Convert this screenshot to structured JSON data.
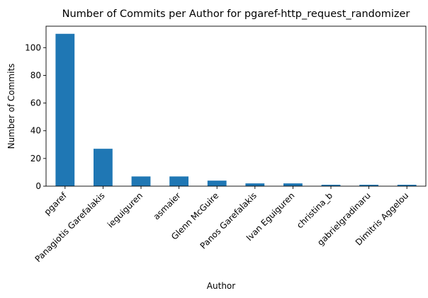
{
  "chart_data": {
    "type": "bar",
    "title": "Number of Commits per Author for pgaref-http_request_randomizer",
    "xlabel": "Author",
    "ylabel": "Number of Commits",
    "categories": [
      "pgaref",
      "Panagiotis Garefalakis",
      "ieguiguren",
      "asmaier",
      "Glenn McGuire",
      "Panos Garefalakis",
      "Ivan Eguiguren",
      "christina_b",
      "gabrielgradinaru",
      "Dimitris Aggelou"
    ],
    "values": [
      110,
      27,
      7,
      7,
      4,
      2,
      2,
      1,
      1,
      1
    ],
    "yticks": [
      0,
      20,
      40,
      60,
      80,
      100
    ],
    "ylim": [
      0,
      115.5
    ],
    "bar_color": "#1f77b4",
    "grid": false,
    "legend": "none"
  }
}
